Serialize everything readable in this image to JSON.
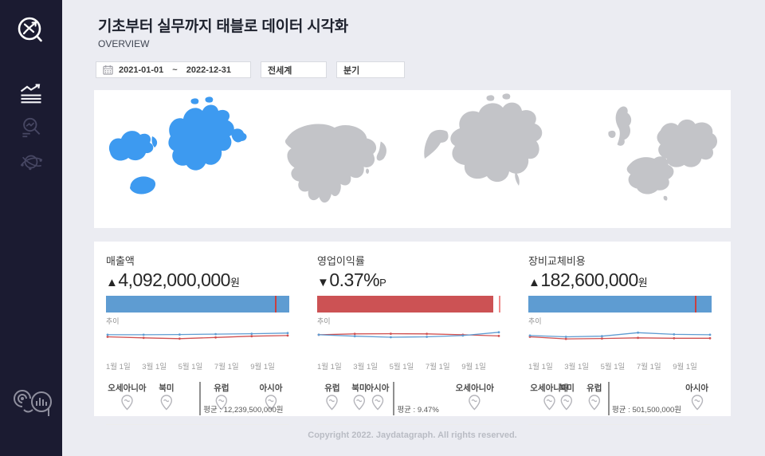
{
  "header": {
    "title": "기초부터 실무까지 태블로 데이터 시각화",
    "subtitle": "OVERVIEW"
  },
  "sidebar": {
    "logo_icon": "chart-bubble-logo",
    "nav_icons": [
      "trend-report-icon",
      "search-analytics-icon",
      "global-network-icon"
    ],
    "bottom_icon": "signature-logo"
  },
  "filters": {
    "date_icon": "calendar-icon",
    "date_start": "2021-01-01",
    "date_separator": "~",
    "date_end": "2022-12-31",
    "region": "전세계",
    "period": "분기"
  },
  "maps": {
    "selected_color": "#3d9af0",
    "unselected_color": "#c3c4c8",
    "items": [
      {
        "name": "world-selection-map",
        "selected": true
      },
      {
        "name": "asia-map",
        "selected": false
      },
      {
        "name": "north-america-map",
        "selected": false
      },
      {
        "name": "europe-map",
        "selected": false
      }
    ]
  },
  "chart_data": [
    {
      "type": "kpi-sparkline-card",
      "metric": "매출액",
      "delta_symbol": "▲",
      "value": "4,092,000,000",
      "unit": "원",
      "bar": {
        "color": "#5e9cd2",
        "fill_pct": 100,
        "ref_line_pct": 92,
        "ref_color": "#c94040"
      },
      "trend_label": "추이",
      "x_ticks": [
        "1월 1일",
        "3월 1일",
        "5월 1일",
        "7월 1일",
        "9월 1일"
      ],
      "series": [
        {
          "name": "current",
          "color": "#5e9cd2",
          "values": [
            62,
            62,
            63,
            65,
            67,
            70
          ]
        },
        {
          "name": "previous",
          "color": "#d05050",
          "values": [
            52,
            47,
            43,
            49,
            55,
            58
          ]
        }
      ],
      "regions": [
        {
          "label": "오세아니아",
          "x_pct": 1
        },
        {
          "label": "북미",
          "x_pct": 33
        },
        {
          "label": "유럽",
          "x_pct": 63
        },
        {
          "label": "아시아",
          "x_pct": 90
        }
      ],
      "avg_divider_pct": 51,
      "avg_label": "평균 : 12,239,500,000원"
    },
    {
      "type": "kpi-sparkline-card",
      "metric": "영업이익률",
      "delta_symbol": "▼",
      "value": "0.37%",
      "unit": "P",
      "bar": {
        "color": "#cc5254",
        "fill_pct": 96,
        "ref_line_pct": 99,
        "ref_color": "#ee8a8a"
      },
      "trend_label": "추이",
      "x_ticks": [
        "1월 1일",
        "3월 1일",
        "5월 1일",
        "7월 1일",
        "9월 1일"
      ],
      "series": [
        {
          "name": "current",
          "color": "#5e9cd2",
          "values": [
            62,
            55,
            50,
            52,
            58,
            74
          ]
        },
        {
          "name": "previous",
          "color": "#d05050",
          "values": [
            62,
            66,
            67,
            66,
            62,
            56
          ]
        }
      ],
      "regions": [
        {
          "label": "유럽",
          "x_pct": 4
        },
        {
          "label": "북미",
          "x_pct": 23
        },
        {
          "label": "아시아",
          "x_pct": 33
        },
        {
          "label": "오세아니아",
          "x_pct": 86
        }
      ],
      "avg_divider_pct": 41.5,
      "avg_label": "평균 : 9.47%"
    },
    {
      "type": "kpi-sparkline-card",
      "metric": "장비교체비용",
      "delta_symbol": "▲",
      "value": "182,600,000",
      "unit": "원",
      "bar": {
        "color": "#5e9cd2",
        "fill_pct": 100,
        "ref_line_pct": 91,
        "ref_color": "#c94040"
      },
      "trend_label": "추이",
      "x_ticks": [
        "1월 1일",
        "3월 1일",
        "5월 1일",
        "7월 1일",
        "9월 1일"
      ],
      "series": [
        {
          "name": "current",
          "color": "#5e9cd2",
          "values": [
            58,
            52,
            55,
            72,
            64,
            62
          ]
        },
        {
          "name": "previous",
          "color": "#d05050",
          "values": [
            52,
            42,
            44,
            47,
            45,
            45
          ]
        }
      ],
      "regions": [
        {
          "label": "오세아니아",
          "x_pct": 1
        },
        {
          "label": "북미",
          "x_pct": 21
        },
        {
          "label": "유럽",
          "x_pct": 36
        },
        {
          "label": "아시아",
          "x_pct": 92
        }
      ],
      "avg_divider_pct": 43.5,
      "avg_label": "평균 : 501,500,000원"
    }
  ],
  "footer": {
    "copyright": "Copyright 2022. Jaydatagraph. All rights reserved."
  }
}
